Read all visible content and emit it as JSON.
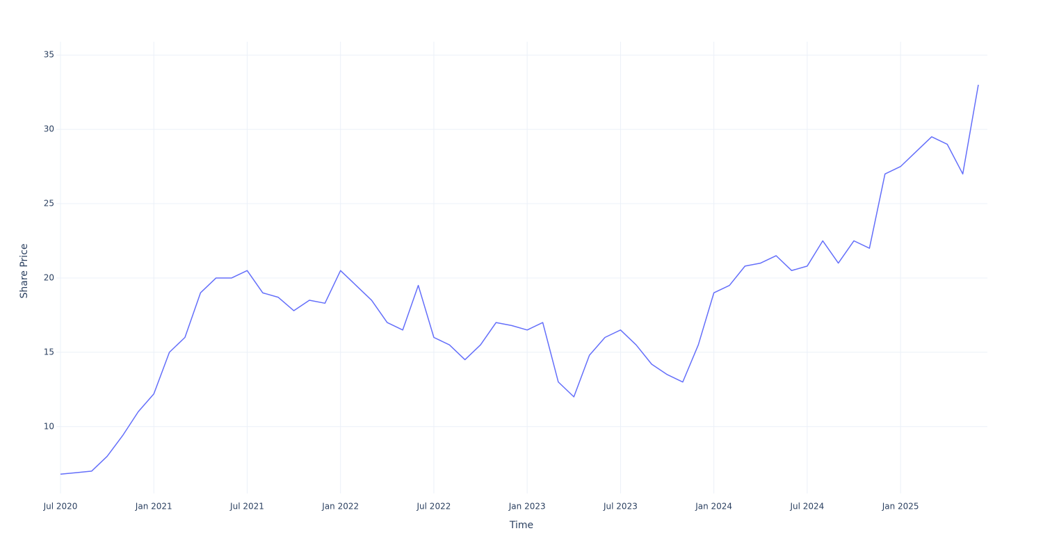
{
  "chart_data": {
    "type": "line",
    "x_label": "Time",
    "y_label": "Share Price",
    "x": [
      "2020-07",
      "2020-08",
      "2020-09",
      "2020-10",
      "2020-11",
      "2020-12",
      "2021-01",
      "2021-02",
      "2021-03",
      "2021-04",
      "2021-05",
      "2021-06",
      "2021-07",
      "2021-08",
      "2021-09",
      "2021-10",
      "2021-11",
      "2021-12",
      "2022-01",
      "2022-02",
      "2022-03",
      "2022-04",
      "2022-05",
      "2022-06",
      "2022-07",
      "2022-08",
      "2022-09",
      "2022-10",
      "2022-11",
      "2022-12",
      "2023-01",
      "2023-02",
      "2023-03",
      "2023-04",
      "2023-05",
      "2023-06",
      "2023-07",
      "2023-08",
      "2023-09",
      "2023-10",
      "2023-11",
      "2023-12",
      "2024-01",
      "2024-02",
      "2024-03",
      "2024-04",
      "2024-05",
      "2024-06",
      "2024-07",
      "2024-08",
      "2024-09",
      "2024-10",
      "2024-11",
      "2024-12",
      "2025-01",
      "2025-02",
      "2025-03",
      "2025-04",
      "2025-05",
      "2025-06"
    ],
    "values": [
      6.8,
      6.9,
      7.0,
      8.0,
      9.4,
      11.0,
      12.2,
      15.0,
      16.0,
      19.0,
      20.0,
      20.0,
      20.5,
      19.0,
      18.7,
      17.8,
      18.5,
      18.3,
      20.5,
      19.5,
      18.5,
      17.0,
      16.5,
      19.5,
      16.0,
      15.5,
      14.5,
      15.5,
      17.0,
      16.8,
      16.5,
      17.0,
      13.0,
      12.0,
      14.8,
      16.0,
      16.5,
      15.5,
      14.2,
      13.5,
      13.0,
      15.5,
      19.0,
      19.5,
      20.8,
      21.0,
      21.5,
      20.5,
      20.8,
      22.5,
      21.0,
      22.5,
      22.0,
      27.0,
      27.5,
      28.5,
      29.5,
      29.0,
      27.0,
      33.0
    ],
    "color": "#636efa",
    "xlim": [
      "2020-07",
      "2025-06"
    ],
    "xticks": [
      {
        "value": "2020-07",
        "label": "Jul 2020"
      },
      {
        "value": "2021-01",
        "label": "Jan 2021"
      },
      {
        "value": "2021-07",
        "label": "Jul 2021"
      },
      {
        "value": "2022-01",
        "label": "Jan 2022"
      },
      {
        "value": "2022-07",
        "label": "Jul 2022"
      },
      {
        "value": "2023-01",
        "label": "Jan 2023"
      },
      {
        "value": "2023-07",
        "label": "Jul 2023"
      },
      {
        "value": "2024-01",
        "label": "Jan 2024"
      },
      {
        "value": "2024-07",
        "label": "Jul 2024"
      },
      {
        "value": "2025-01",
        "label": "Jan 2025"
      }
    ],
    "ylim": [
      5.5,
      35.9
    ],
    "yticks": [
      10,
      15,
      20,
      25,
      30,
      35
    ],
    "grid": true
  }
}
